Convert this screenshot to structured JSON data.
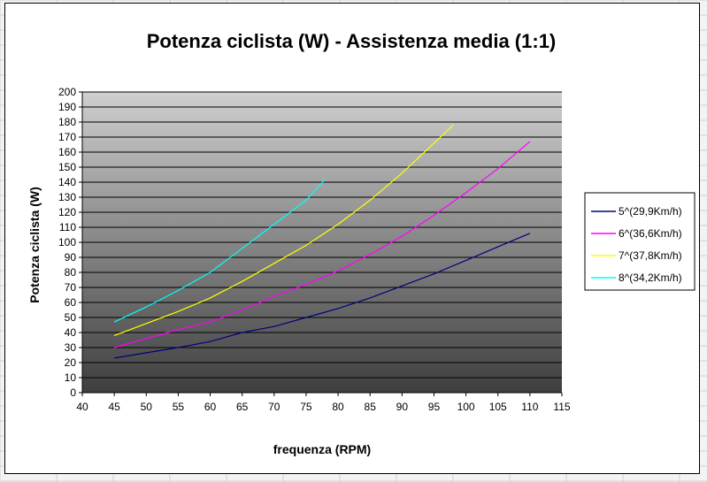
{
  "chart_data": {
    "type": "line",
    "title": "Potenza ciclista (W) - Assistenza media (1:1)",
    "xlabel": "frequenza (RPM)",
    "ylabel": "Potenza ciclista (W)",
    "xlim": [
      40,
      115
    ],
    "ylim": [
      0,
      200
    ],
    "xticks": [
      "40",
      "45",
      "50",
      "55",
      "60",
      "65",
      "70",
      "75",
      "80",
      "85",
      "90",
      "95",
      "100",
      "105",
      "110",
      "115"
    ],
    "yticks": [
      "0",
      "10",
      "20",
      "30",
      "40",
      "50",
      "60",
      "70",
      "80",
      "90",
      "100",
      "110",
      "120",
      "130",
      "140",
      "150",
      "160",
      "170",
      "180",
      "190",
      "200"
    ],
    "grid": "horizontal",
    "legend_position": "right",
    "series": [
      {
        "name": "5^(29,9Km/h)",
        "color": "#000080",
        "x": [
          45,
          50,
          55,
          60,
          65,
          70,
          75,
          80,
          85,
          90,
          95,
          100,
          105,
          110
        ],
        "y": [
          23,
          26.5,
          30,
          34,
          40,
          44,
          50,
          56,
          63,
          71,
          79,
          88,
          97,
          106
        ]
      },
      {
        "name": "6^(36,6Km/h)",
        "color": "#ff00ff",
        "x": [
          45,
          50,
          55,
          60,
          65,
          70,
          75,
          80,
          85,
          90,
          95,
          100,
          105,
          110
        ],
        "y": [
          30,
          36,
          42,
          47,
          55,
          64,
          72,
          81,
          92,
          104,
          118,
          133,
          149,
          167
        ]
      },
      {
        "name": "7^(37,8Km/h)",
        "color": "#ffff00",
        "x": [
          45,
          50,
          55,
          60,
          65,
          70,
          75,
          80,
          85,
          90,
          95,
          98
        ],
        "y": [
          38,
          46,
          54,
          63,
          74,
          86,
          98,
          112,
          128,
          146,
          166,
          178
        ]
      },
      {
        "name": "8^(34,2Km/h)",
        "color": "#00ffff",
        "x": [
          45,
          50,
          55,
          60,
          65,
          70,
          75,
          78
        ],
        "y": [
          47,
          57,
          68,
          80,
          96,
          112,
          128,
          142
        ]
      }
    ]
  },
  "colors": {
    "plot_top": "#cfcfcf",
    "plot_bottom": "#3e3e3e",
    "gridline": "#000000"
  }
}
